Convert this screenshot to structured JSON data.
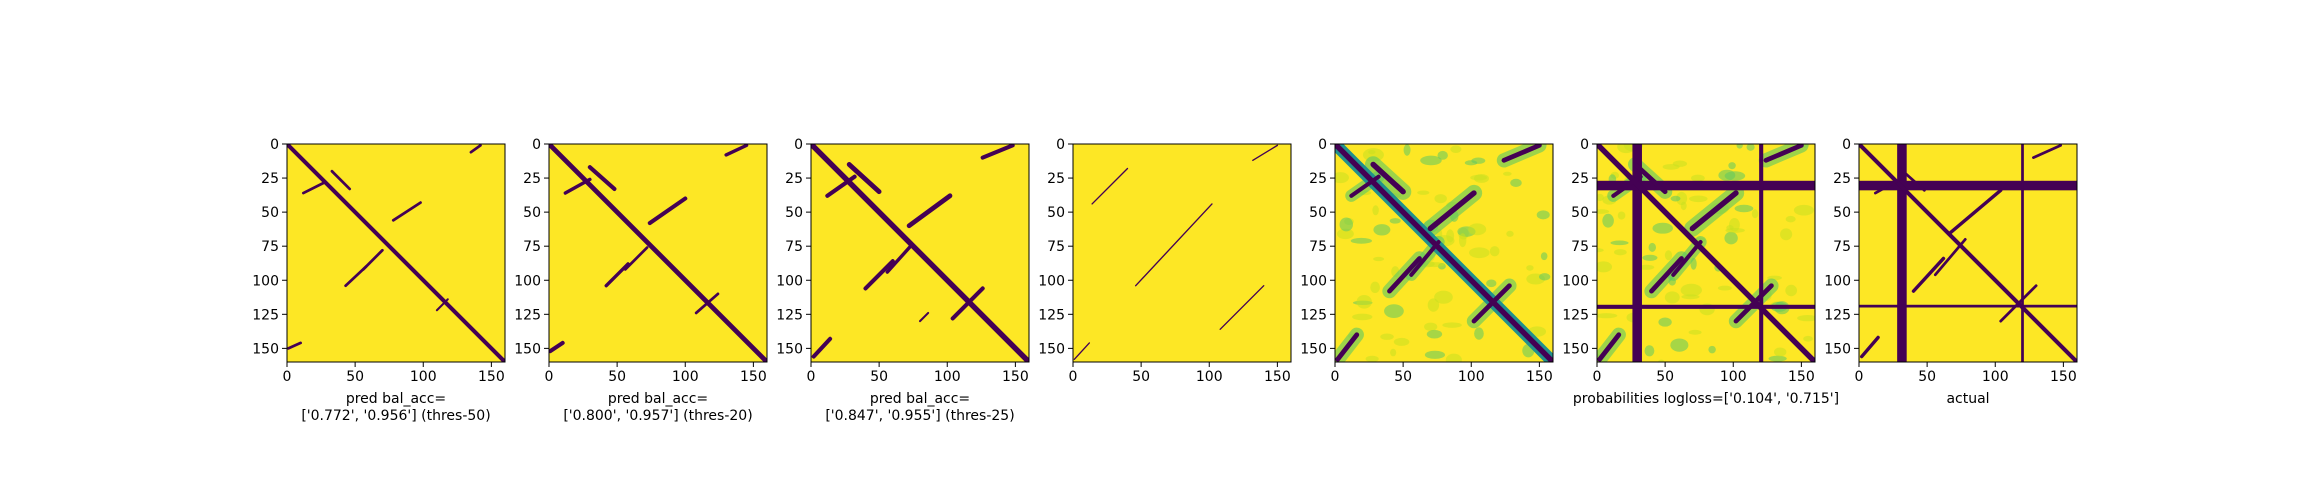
{
  "colors": {
    "background": "#fde725",
    "contact": "#440154",
    "mid_teal": "#21918c",
    "mid_green": "#5ec962",
    "light": "#c8e020"
  },
  "chart_data": [
    {
      "type": "heatmap",
      "title": "",
      "xlabel_lines": [
        "pred bal_acc=",
        "['0.772', '0.956'] (thres-50)"
      ],
      "xlim": [
        0,
        160
      ],
      "ylim": [
        160,
        0
      ],
      "xticks": [
        0,
        50,
        100,
        150
      ],
      "yticks": [
        0,
        25,
        50,
        75,
        100,
        125,
        150
      ],
      "colormap": "viridis",
      "features": {
        "diagonal": {
          "width": 3
        },
        "lines": [
          {
            "x": [
              33,
              46
            ],
            "y": [
              20,
              33
            ],
            "w": 2
          },
          {
            "x": [
              12,
              28
            ],
            "y": [
              36,
              28
            ],
            "w": 2
          },
          {
            "x": [
              78,
              98
            ],
            "y": [
              56,
              43
            ],
            "w": 2
          },
          {
            "x": [
              43,
              58
            ],
            "y": [
              104,
              90
            ],
            "w": 2
          },
          {
            "x": [
              56,
              70
            ],
            "y": [
              92,
              78
            ],
            "w": 2
          },
          {
            "x": [
              135,
              142
            ],
            "y": [
              6,
              1
            ],
            "w": 2
          },
          {
            "x": [
              1,
              10
            ],
            "y": [
              150,
              146
            ],
            "w": 2
          },
          {
            "x": [
              110,
              118
            ],
            "y": [
              122,
              114
            ],
            "w": 1.5
          }
        ],
        "rects": [],
        "noise": 0
      }
    },
    {
      "type": "heatmap",
      "title": "",
      "xlabel_lines": [
        "pred bal_acc=",
        "['0.800', '0.957'] (thres-20)"
      ],
      "xlim": [
        0,
        160
      ],
      "ylim": [
        160,
        0
      ],
      "xticks": [
        0,
        50,
        100,
        150
      ],
      "yticks": [
        0,
        25,
        50,
        75,
        100,
        125,
        150
      ],
      "colormap": "viridis",
      "features": {
        "diagonal": {
          "width": 3.5
        },
        "lines": [
          {
            "x": [
              30,
              48
            ],
            "y": [
              17,
              33
            ],
            "w": 3
          },
          {
            "x": [
              12,
              30
            ],
            "y": [
              36,
              26
            ],
            "w": 2.5
          },
          {
            "x": [
              74,
              100
            ],
            "y": [
              58,
              40
            ],
            "w": 3
          },
          {
            "x": [
              42,
              58
            ],
            "y": [
              104,
              88
            ],
            "w": 2.5
          },
          {
            "x": [
              56,
              72
            ],
            "y": [
              92,
              76
            ],
            "w": 2
          },
          {
            "x": [
              130,
              145
            ],
            "y": [
              8,
              1
            ],
            "w": 2.5
          },
          {
            "x": [
              1,
              10
            ],
            "y": [
              152,
              146
            ],
            "w": 3
          },
          {
            "x": [
              108,
              124
            ],
            "y": [
              124,
              110
            ],
            "w": 2
          }
        ],
        "rects": [],
        "noise": 0
      }
    },
    {
      "type": "heatmap",
      "title": "",
      "xlabel_lines": [
        "pred bal_acc=",
        "['0.847', '0.955'] (thres-25)"
      ],
      "xlim": [
        0,
        160
      ],
      "ylim": [
        160,
        0
      ],
      "xticks": [
        0,
        50,
        100,
        150
      ],
      "yticks": [
        0,
        25,
        50,
        75,
        100,
        125,
        150
      ],
      "colormap": "viridis",
      "features": {
        "diagonal": {
          "width": 4
        },
        "lines": [
          {
            "x": [
              28,
              50
            ],
            "y": [
              15,
              35
            ],
            "w": 3.5
          },
          {
            "x": [
              12,
              32
            ],
            "y": [
              38,
              24
            ],
            "w": 3
          },
          {
            "x": [
              72,
              102
            ],
            "y": [
              60,
              38
            ],
            "w": 3.5
          },
          {
            "x": [
              40,
              60
            ],
            "y": [
              106,
              86
            ],
            "w": 3
          },
          {
            "x": [
              56,
              74
            ],
            "y": [
              94,
              74
            ],
            "w": 2.5
          },
          {
            "x": [
              126,
              148
            ],
            "y": [
              10,
              1
            ],
            "w": 3
          },
          {
            "x": [
              2,
              14
            ],
            "y": [
              156,
              143
            ],
            "w": 3
          },
          {
            "x": [
              104,
              126
            ],
            "y": [
              128,
              106
            ],
            "w": 3
          },
          {
            "x": [
              80,
              86
            ],
            "y": [
              130,
              124
            ],
            "w": 1.5
          }
        ],
        "rects": [],
        "noise": 0
      }
    },
    {
      "type": "heatmap",
      "title": "",
      "xlabel_lines": [],
      "xlim": [
        0,
        160
      ],
      "ylim": [
        160,
        0
      ],
      "xticks": [
        0,
        50,
        100,
        150
      ],
      "yticks": [
        0,
        25,
        50,
        75,
        100,
        125,
        150
      ],
      "colormap": "viridis",
      "features": {
        "diagonal": null,
        "lines": [
          {
            "x": [
              14,
              40
            ],
            "y": [
              44,
              18
            ],
            "w": 1
          },
          {
            "x": [
              46,
              102
            ],
            "y": [
              104,
              44
            ],
            "w": 1
          },
          {
            "x": [
              108,
              140
            ],
            "y": [
              136,
              104
            ],
            "w": 1
          },
          {
            "x": [
              132,
              150
            ],
            "y": [
              12,
              1
            ],
            "w": 1
          },
          {
            "x": [
              1,
              12
            ],
            "y": [
              158,
              146
            ],
            "w": 1
          }
        ],
        "rects": [],
        "noise": 0
      }
    },
    {
      "type": "heatmap",
      "title": "",
      "xlabel_lines": [],
      "xlim": [
        0,
        160
      ],
      "ylim": [
        160,
        0
      ],
      "xticks": [
        0,
        50,
        100,
        150
      ],
      "yticks": [
        0,
        25,
        50,
        75,
        100,
        125,
        150
      ],
      "colormap": "viridis",
      "features": {
        "diagonal": {
          "width": 4,
          "soft": true
        },
        "lines": [
          {
            "x": [
              28,
              50
            ],
            "y": [
              15,
              35
            ],
            "w": 4
          },
          {
            "x": [
              12,
              32
            ],
            "y": [
              38,
              24
            ],
            "w": 3
          },
          {
            "x": [
              70,
              102
            ],
            "y": [
              62,
              36
            ],
            "w": 4
          },
          {
            "x": [
              40,
              62
            ],
            "y": [
              108,
              84
            ],
            "w": 3.5
          },
          {
            "x": [
              56,
              76
            ],
            "y": [
              96,
              72
            ],
            "w": 3
          },
          {
            "x": [
              124,
              150
            ],
            "y": [
              12,
              1
            ],
            "w": 3.5
          },
          {
            "x": [
              2,
              16
            ],
            "y": [
              158,
              140
            ],
            "w": 3.5
          },
          {
            "x": [
              102,
              128
            ],
            "y": [
              130,
              104
            ],
            "w": 3.5
          }
        ],
        "rects": [],
        "noise": 1
      }
    },
    {
      "type": "heatmap",
      "title": "",
      "xlabel_lines": [
        "probabilities logloss=['0.104', '0.715']"
      ],
      "xlim": [
        0,
        160
      ],
      "ylim": [
        160,
        0
      ],
      "xticks": [
        0,
        50,
        100,
        150
      ],
      "yticks": [
        0,
        25,
        50,
        75,
        100,
        125,
        150
      ],
      "colormap": "viridis",
      "features": {
        "diagonal": {
          "width": 4
        },
        "lines": [
          {
            "x": [
              28,
              50
            ],
            "y": [
              15,
              35
            ],
            "w": 3.5
          },
          {
            "x": [
              12,
              32
            ],
            "y": [
              38,
              24
            ],
            "w": 3
          },
          {
            "x": [
              70,
              102
            ],
            "y": [
              62,
              36
            ],
            "w": 4
          },
          {
            "x": [
              40,
              62
            ],
            "y": [
              108,
              84
            ],
            "w": 3.5
          },
          {
            "x": [
              56,
              76
            ],
            "y": [
              96,
              72
            ],
            "w": 3
          },
          {
            "x": [
              124,
              150
            ],
            "y": [
              12,
              1
            ],
            "w": 3.5
          },
          {
            "x": [
              2,
              16
            ],
            "y": [
              158,
              140
            ],
            "w": 3.5
          },
          {
            "x": [
              102,
              128
            ],
            "y": [
              130,
              104
            ],
            "w": 3.5
          }
        ],
        "rects": [
          {
            "x0": 26,
            "x1": 33,
            "y0": 0,
            "y1": 160
          },
          {
            "x0": 0,
            "x1": 160,
            "y0": 27,
            "y1": 34
          },
          {
            "x0": 119,
            "x1": 122,
            "y0": 0,
            "y1": 160
          },
          {
            "x0": 0,
            "x1": 160,
            "y0": 118,
            "y1": 121
          }
        ],
        "noise": 1
      }
    },
    {
      "type": "heatmap",
      "title": "",
      "xlabel_lines": [
        "actual"
      ],
      "xlim": [
        0,
        160
      ],
      "ylim": [
        160,
        0
      ],
      "xticks": [
        0,
        50,
        100,
        150
      ],
      "yticks": [
        0,
        25,
        50,
        75,
        100,
        125,
        150
      ],
      "colormap": "viridis",
      "features": {
        "diagonal": {
          "width": 3
        },
        "lines": [
          {
            "x": [
              30,
              48
            ],
            "y": [
              18,
              34
            ],
            "w": 2
          },
          {
            "x": [
              12,
              30
            ],
            "y": [
              36,
              26
            ],
            "w": 2
          },
          {
            "x": [
              66,
              104
            ],
            "y": [
              66,
              34
            ],
            "w": 2.5
          },
          {
            "x": [
              40,
              62
            ],
            "y": [
              108,
              84
            ],
            "w": 2.5
          },
          {
            "x": [
              56,
              78
            ],
            "y": [
              96,
              70
            ],
            "w": 2
          },
          {
            "x": [
              128,
              148
            ],
            "y": [
              10,
              1
            ],
            "w": 2
          },
          {
            "x": [
              2,
              14
            ],
            "y": [
              156,
              142
            ],
            "w": 2.5
          },
          {
            "x": [
              104,
              130
            ],
            "y": [
              130,
              104
            ],
            "w": 2
          }
        ],
        "rects": [
          {
            "x0": 28,
            "x1": 35,
            "y0": 0,
            "y1": 160
          },
          {
            "x0": 0,
            "x1": 160,
            "y0": 27,
            "y1": 34
          },
          {
            "x0": 119,
            "x1": 121,
            "y0": 0,
            "y1": 160
          },
          {
            "x0": 0,
            "x1": 160,
            "y0": 118,
            "y1": 120
          }
        ],
        "noise": 0
      }
    }
  ]
}
